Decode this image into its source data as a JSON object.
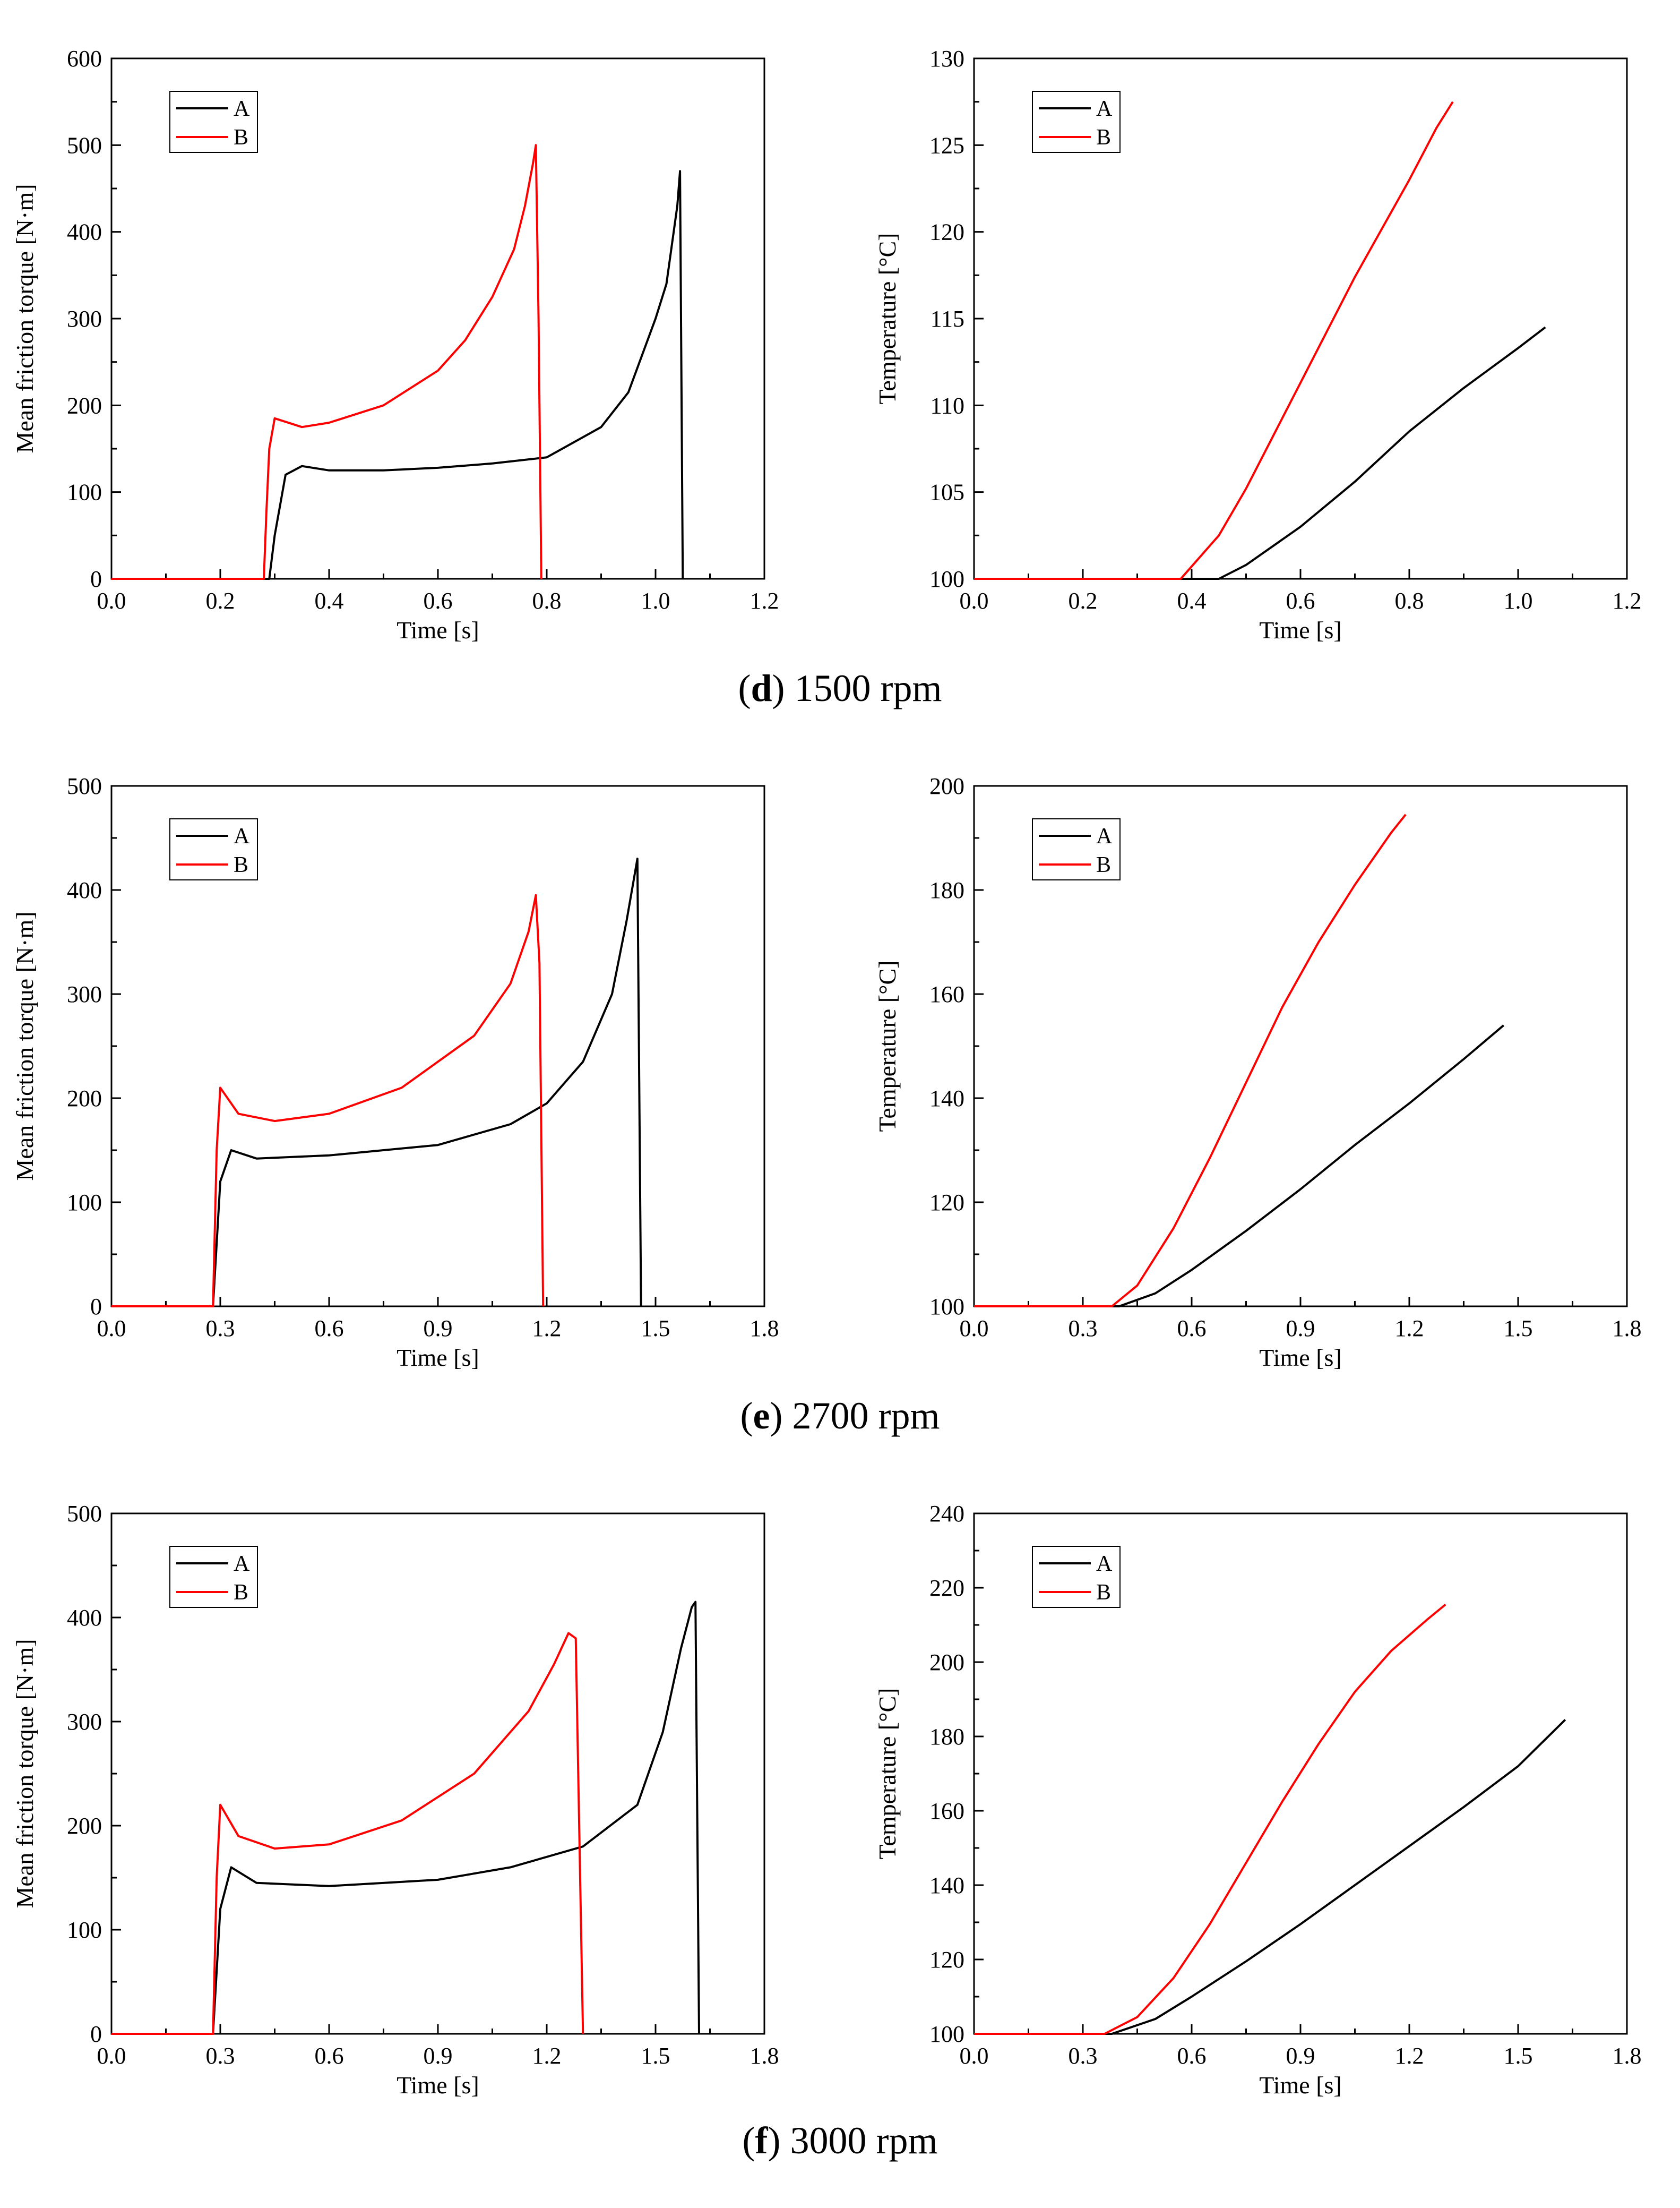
{
  "captions": [
    {
      "letter": "d",
      "text": ") 1500 rpm"
    },
    {
      "letter": "e",
      "text": ") 2700 rpm"
    },
    {
      "letter": "f",
      "text": ") 3000 rpm"
    }
  ],
  "colors": {
    "A": "#000000",
    "B": "#ff0000"
  },
  "chart_data": [
    {
      "type": "line",
      "panel": "d-torque",
      "xlabel": "Time [s]",
      "ylabel": "Mean friction torque [N·m]",
      "xlim": [
        0,
        1.2
      ],
      "ylim": [
        0,
        600
      ],
      "xticks": [
        "0.0",
        "0.2",
        "0.4",
        "0.6",
        "0.8",
        "1.0",
        "1.2"
      ],
      "yticks": [
        "0",
        "100",
        "200",
        "300",
        "400",
        "500",
        "600"
      ],
      "legend": "top-left",
      "series": [
        {
          "name": "A",
          "x": [
            0,
            0.29,
            0.3,
            0.32,
            0.35,
            0.4,
            0.5,
            0.6,
            0.7,
            0.8,
            0.9,
            0.95,
            1.0,
            1.02,
            1.04,
            1.045,
            1.05
          ],
          "y": [
            0,
            0,
            50,
            120,
            130,
            125,
            125,
            128,
            133,
            140,
            175,
            215,
            300,
            340,
            430,
            470,
            0
          ]
        },
        {
          "name": "B",
          "x": [
            0,
            0.28,
            0.285,
            0.29,
            0.3,
            0.35,
            0.4,
            0.5,
            0.6,
            0.65,
            0.7,
            0.74,
            0.76,
            0.775,
            0.78,
            0.785,
            0.79
          ],
          "y": [
            0,
            0,
            80,
            150,
            185,
            175,
            180,
            200,
            240,
            275,
            325,
            380,
            430,
            480,
            500,
            300,
            0
          ]
        }
      ]
    },
    {
      "type": "line",
      "panel": "d-temperature",
      "xlabel": "Time [s]",
      "ylabel": "Temperature [°C]",
      "xlim": [
        0,
        1.2
      ],
      "ylim": [
        100,
        130
      ],
      "xticks": [
        "0.0",
        "0.2",
        "0.4",
        "0.6",
        "0.8",
        "1.0",
        "1.2"
      ],
      "yticks": [
        "100",
        "105",
        "110",
        "115",
        "120",
        "125",
        "130"
      ],
      "legend": "top-left",
      "series": [
        {
          "name": "A",
          "x": [
            0,
            0.45,
            0.5,
            0.6,
            0.7,
            0.8,
            0.9,
            1.0,
            1.05
          ],
          "y": [
            100,
            100,
            100.8,
            103.0,
            105.6,
            108.5,
            111.0,
            113.3,
            114.5
          ]
        },
        {
          "name": "B",
          "x": [
            0,
            0.38,
            0.45,
            0.5,
            0.6,
            0.7,
            0.8,
            0.85,
            0.88
          ],
          "y": [
            100,
            100,
            102.5,
            105.2,
            111.3,
            117.4,
            123.0,
            126.0,
            127.5
          ]
        }
      ]
    },
    {
      "type": "line",
      "panel": "e-torque",
      "xlabel": "Time [s]",
      "ylabel": "Mean friction torque [N·m]",
      "xlim": [
        0,
        1.8
      ],
      "ylim": [
        0,
        500
      ],
      "xticks": [
        "0.0",
        "0.3",
        "0.6",
        "0.9",
        "1.2",
        "1.5",
        "1.8"
      ],
      "yticks": [
        "0",
        "100",
        "200",
        "300",
        "400",
        "500"
      ],
      "legend": "top-left",
      "series": [
        {
          "name": "A",
          "x": [
            0,
            0.28,
            0.3,
            0.33,
            0.4,
            0.6,
            0.9,
            1.1,
            1.2,
            1.3,
            1.38,
            1.42,
            1.44,
            1.45,
            1.46
          ],
          "y": [
            0,
            0,
            120,
            150,
            142,
            145,
            155,
            175,
            195,
            235,
            300,
            370,
            410,
            430,
            0
          ]
        },
        {
          "name": "B",
          "x": [
            0,
            0.28,
            0.29,
            0.3,
            0.35,
            0.45,
            0.6,
            0.8,
            1.0,
            1.1,
            1.15,
            1.17,
            1.18,
            1.19
          ],
          "y": [
            0,
            0,
            150,
            210,
            185,
            178,
            185,
            210,
            260,
            310,
            360,
            395,
            330,
            0
          ]
        }
      ]
    },
    {
      "type": "line",
      "panel": "e-temperature",
      "xlabel": "Time [s]",
      "ylabel": "Temperature [°C]",
      "xlim": [
        0,
        1.8
      ],
      "ylim": [
        100,
        200
      ],
      "xticks": [
        "0.0",
        "0.3",
        "0.6",
        "0.9",
        "1.2",
        "1.5",
        "1.8"
      ],
      "yticks": [
        "100",
        "120",
        "140",
        "160",
        "180",
        "200"
      ],
      "legend": "top-left",
      "series": [
        {
          "name": "A",
          "x": [
            0,
            0.4,
            0.5,
            0.6,
            0.75,
            0.9,
            1.05,
            1.2,
            1.35,
            1.46
          ],
          "y": [
            100,
            100,
            102.5,
            107.0,
            114.5,
            122.5,
            131.0,
            139.0,
            147.5,
            154.0
          ]
        },
        {
          "name": "B",
          "x": [
            0,
            0.38,
            0.45,
            0.55,
            0.65,
            0.75,
            0.85,
            0.95,
            1.05,
            1.15,
            1.19
          ],
          "y": [
            100,
            100,
            104.0,
            115.0,
            128.5,
            143.0,
            157.5,
            170.0,
            181.0,
            191.0,
            194.5
          ]
        }
      ]
    },
    {
      "type": "line",
      "panel": "f-torque",
      "xlabel": "Time [s]",
      "ylabel": "Mean friction torque [N·m]",
      "xlim": [
        0,
        1.8
      ],
      "ylim": [
        0,
        500
      ],
      "xticks": [
        "0.0",
        "0.3",
        "0.6",
        "0.9",
        "1.2",
        "1.5",
        "1.8"
      ],
      "yticks": [
        "0",
        "100",
        "200",
        "300",
        "400",
        "500"
      ],
      "legend": "top-left",
      "series": [
        {
          "name": "A",
          "x": [
            0,
            0.28,
            0.3,
            0.33,
            0.4,
            0.6,
            0.9,
            1.1,
            1.3,
            1.45,
            1.52,
            1.57,
            1.6,
            1.61,
            1.62
          ],
          "y": [
            0,
            0,
            120,
            160,
            145,
            142,
            148,
            160,
            180,
            220,
            290,
            370,
            410,
            415,
            0
          ]
        },
        {
          "name": "B",
          "x": [
            0,
            0.28,
            0.29,
            0.3,
            0.35,
            0.45,
            0.6,
            0.8,
            1.0,
            1.15,
            1.22,
            1.26,
            1.28,
            1.3
          ],
          "y": [
            0,
            0,
            150,
            220,
            190,
            178,
            182,
            205,
            250,
            310,
            355,
            385,
            380,
            0
          ]
        }
      ]
    },
    {
      "type": "line",
      "panel": "f-temperature",
      "xlabel": "Time [s]",
      "ylabel": "Temperature [°C]",
      "xlim": [
        0,
        1.8
      ],
      "ylim": [
        100,
        240
      ],
      "xticks": [
        "0.0",
        "0.3",
        "0.6",
        "0.9",
        "1.2",
        "1.5",
        "1.8"
      ],
      "yticks": [
        "100",
        "120",
        "140",
        "160",
        "180",
        "200",
        "220",
        "240"
      ],
      "legend": "top-left",
      "series": [
        {
          "name": "A",
          "x": [
            0,
            0.38,
            0.5,
            0.6,
            0.75,
            0.9,
            1.05,
            1.2,
            1.35,
            1.5,
            1.63
          ],
          "y": [
            100,
            100,
            104.0,
            110.0,
            119.5,
            129.5,
            140.0,
            150.5,
            161.0,
            172.0,
            184.5
          ]
        },
        {
          "name": "B",
          "x": [
            0,
            0.36,
            0.45,
            0.55,
            0.65,
            0.75,
            0.85,
            0.95,
            1.05,
            1.15,
            1.25,
            1.3
          ],
          "y": [
            100,
            100,
            104.5,
            115.0,
            129.5,
            146.0,
            162.5,
            178.0,
            192.0,
            203.0,
            211.5,
            215.5
          ]
        }
      ]
    }
  ]
}
